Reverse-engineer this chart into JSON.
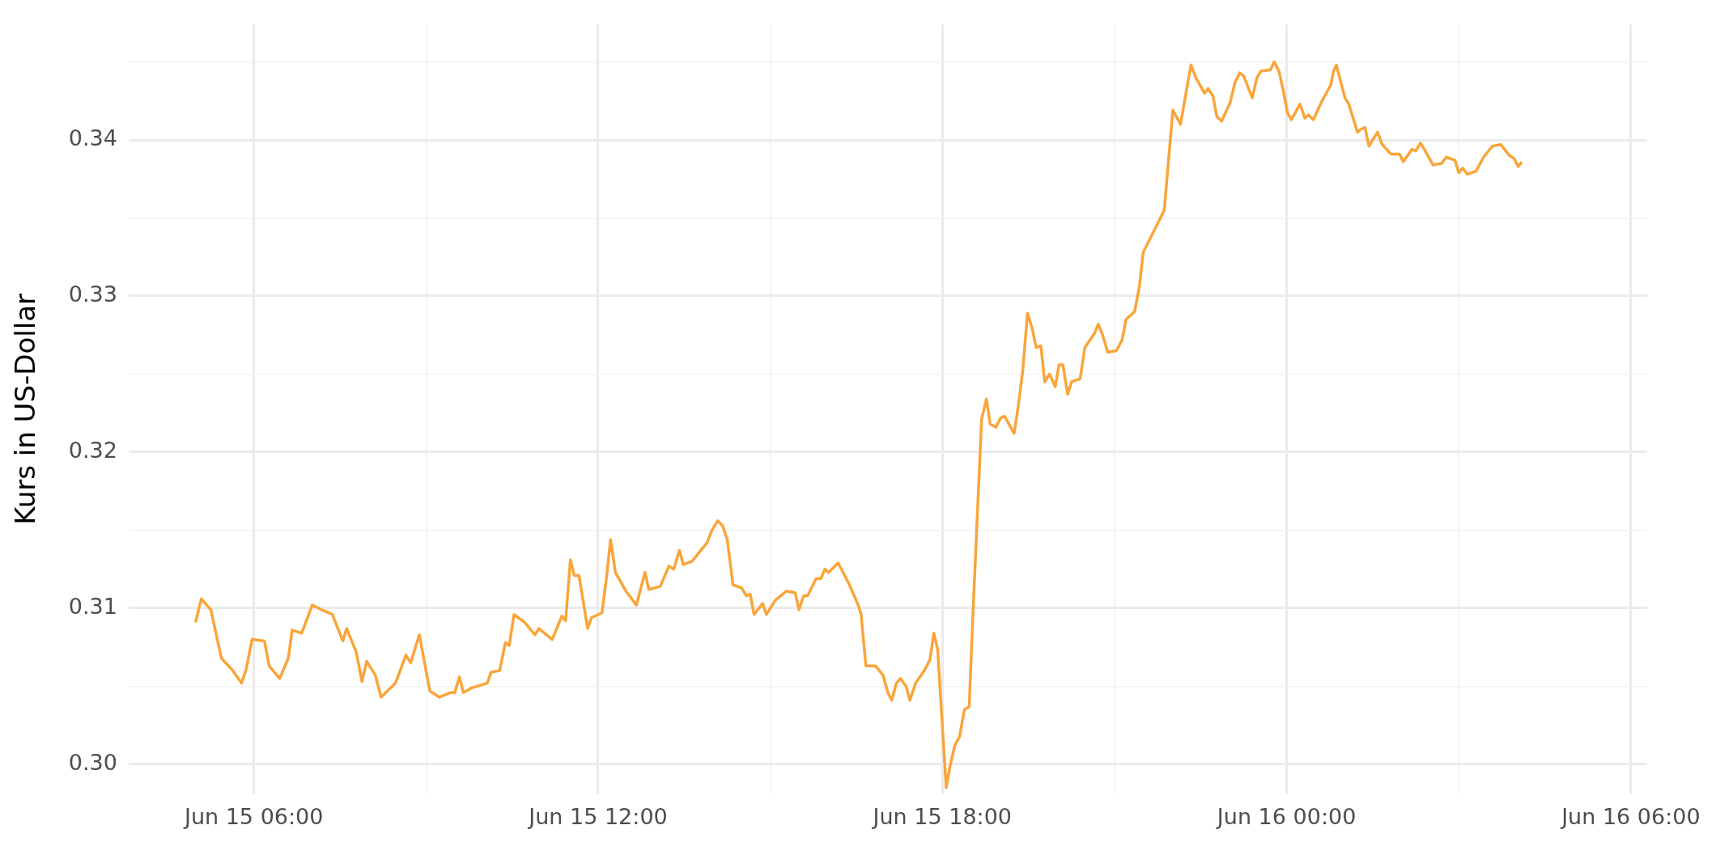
{
  "chart_data": {
    "type": "line",
    "ylabel": "Kurs in US-Dollar",
    "color": "#f9a53a",
    "grid": true,
    "marker": "none",
    "line_style": "solid",
    "legend": false,
    "xlim": [
      "--06-15T03:49",
      "--06-16T06:17"
    ],
    "xticks": [
      {
        "value": "--06-15T06:00",
        "label": "Jun 15 06:00"
      },
      {
        "value": "--06-15T09:00",
        "label": null
      },
      {
        "value": "--06-15T12:00",
        "label": "Jun 15 12:00"
      },
      {
        "value": "--06-15T15:00",
        "label": null
      },
      {
        "value": "--06-15T18:00",
        "label": "Jun 15 18:00"
      },
      {
        "value": "--06-15T21:00",
        "label": null
      },
      {
        "value": "--06-16T00:00",
        "label": "Jun 16 00:00"
      },
      {
        "value": "--06-16T03:00",
        "label": null
      },
      {
        "value": "--06-16T06:00",
        "label": "Jun 16 06:00"
      }
    ],
    "ylim": [
      0.2981,
      0.3474
    ],
    "yticks": [
      {
        "value": 0.3,
        "label": "0.30"
      },
      {
        "value": 0.305,
        "label": null
      },
      {
        "value": 0.31,
        "label": "0.31"
      },
      {
        "value": 0.315,
        "label": null
      },
      {
        "value": 0.32,
        "label": "0.32"
      },
      {
        "value": 0.325,
        "label": null
      },
      {
        "value": 0.33,
        "label": "0.33"
      },
      {
        "value": 0.335,
        "label": null
      },
      {
        "value": 0.34,
        "label": "0.34"
      },
      {
        "value": 0.345,
        "label": null
      }
    ],
    "x": [
      "--06-15T04:59",
      "--06-15T05:05",
      "--06-15T05:15",
      "--06-15T05:26",
      "--06-15T05:38",
      "--06-15T05:47",
      "--06-15T05:52",
      "--06-15T05:58",
      "--06-15T06:11",
      "--06-15T06:16",
      "--06-15T06:27",
      "--06-15T06:36",
      "--06-15T06:40",
      "--06-15T06:50",
      "--06-15T07:01",
      "--06-15T07:11",
      "--06-15T07:22",
      "--06-15T07:33",
      "--06-15T07:37",
      "--06-15T07:47",
      "--06-15T07:53",
      "--06-15T07:58",
      "--06-15T08:07",
      "--06-15T08:13",
      "--06-15T08:28",
      "--06-15T08:39",
      "--06-15T08:44",
      "--06-15T08:53",
      "--06-15T09:04",
      "--06-15T09:14",
      "--06-15T09:26",
      "--06-15T09:30",
      "--06-15T09:35",
      "--06-15T09:39",
      "--06-15T09:48",
      "--06-15T10:04",
      "--06-15T10:08",
      "--06-15T10:17",
      "--06-15T10:23",
      "--06-15T10:27",
      "--06-15T10:32",
      "--06-15T10:43",
      "--06-15T10:54",
      "--06-15T10:58",
      "--06-15T11:12",
      "--06-15T11:22",
      "--06-15T11:26",
      "--06-15T11:31",
      "--06-15T11:35",
      "--06-15T11:40",
      "--06-15T11:49",
      "--06-15T11:53",
      "--06-15T12:04",
      "--06-15T12:09",
      "--06-15T12:13",
      "--06-15T12:18",
      "--06-15T12:29",
      "--06-15T12:40",
      "--06-15T12:49",
      "--06-15T12:53",
      "--06-15T13:05",
      "--06-15T13:14",
      "--06-15T13:19",
      "--06-15T13:25",
      "--06-15T13:29",
      "--06-15T13:38",
      "--06-15T13:54",
      "--06-15T13:59",
      "--06-15T14:05",
      "--06-15T14:10",
      "--06-15T14:15",
      "--06-15T14:21",
      "--06-15T14:30",
      "--06-15T14:35",
      "--06-15T14:39",
      "--06-15T14:43",
      "--06-15T14:52",
      "--06-15T14:56",
      "--06-15T15:05",
      "--06-15T15:17",
      "--06-15T15:26",
      "--06-15T15:30",
      "--06-15T15:35",
      "--06-15T15:39",
      "--06-15T15:48",
      "--06-15T15:53",
      "--06-15T15:57",
      "--06-15T16:01",
      "--06-15T16:11",
      "--06-15T16:22",
      "--06-15T16:32",
      "--06-15T16:35",
      "--06-15T16:40",
      "--06-15T16:50",
      "--06-15T16:58",
      "--06-15T17:03",
      "--06-15T17:07",
      "--06-15T17:12",
      "--06-15T17:16",
      "--06-15T17:22",
      "--06-15T17:26",
      "--06-15T17:32",
      "--06-15T17:41",
      "--06-15T17:47",
      "--06-15T17:51",
      "--06-15T17:55",
      "--06-15T17:58",
      "--06-15T18:04",
      "--06-15T18:08",
      "--06-15T18:13",
      "--06-15T18:18",
      "--06-15T18:23",
      "--06-15T18:28",
      "--06-15T18:32",
      "--06-15T18:41",
      "--06-15T18:46",
      "--06-15T18:50",
      "--06-15T18:56",
      "--06-15T19:01",
      "--06-15T19:05",
      "--06-15T19:15",
      "--06-15T19:19",
      "--06-15T19:24",
      "--06-15T19:29",
      "--06-15T19:34",
      "--06-15T19:38",
      "--06-15T19:43",
      "--06-15T19:47",
      "--06-15T19:52",
      "--06-15T19:58",
      "--06-15T20:02",
      "--06-15T20:06",
      "--06-15T20:11",
      "--06-15T20:15",
      "--06-15T20:24",
      "--06-15T20:29",
      "--06-15T20:39",
      "--06-15T20:43",
      "--06-15T20:47",
      "--06-15T20:53",
      "--06-15T21:02",
      "--06-15T21:08",
      "--06-15T21:12",
      "--06-15T21:21",
      "--06-15T21:26",
      "--06-15T21:30",
      "--06-15T21:39",
      "--06-15T21:48",
      "--06-15T21:52",
      "--06-15T22:01",
      "--06-15T22:09",
      "--06-15T22:15",
      "--06-15T22:20",
      "--06-15T22:25",
      "--06-15T22:34",
      "--06-15T22:38",
      "--06-15T22:43",
      "--06-15T22:47",
      "--06-15T22:52",
      "--06-15T23:01",
      "--06-15T23:06",
      "--06-15T23:11",
      "--06-15T23:15",
      "--06-15T23:24",
      "--06-15T23:29",
      "--06-15T23:33",
      "--06-15T23:43",
      "--06-15T23:47",
      "--06-15T23:52",
      "--06-15T23:56",
      "--06-16T00:01",
      "--06-16T00:05",
      "--06-16T00:14",
      "--06-16T00:19",
      "--06-16T00:23",
      "--06-16T00:28",
      "--06-16T00:37",
      "--06-16T00:46",
      "--06-16T00:49",
      "--06-16T00:52",
      "--06-16T01:01",
      "--06-16T01:05",
      "--06-16T01:14",
      "--06-16T01:18",
      "--06-16T01:22",
      "--06-16T01:26",
      "--06-16T01:35",
      "--06-16T01:40",
      "--06-16T01:49",
      "--06-16T01:58",
      "--06-16T02:02",
      "--06-16T02:11",
      "--06-16T02:15",
      "--06-16T02:20",
      "--06-16T02:24",
      "--06-16T02:33",
      "--06-16T02:42",
      "--06-16T02:47",
      "--06-16T02:56",
      "--06-16T03:00",
      "--06-16T03:04",
      "--06-16T03:09",
      "--06-16T03:18",
      "--06-16T03:26",
      "--06-16T03:35",
      "--06-16T03:44",
      "--06-16T03:53",
      "--06-16T03:58",
      "--06-16T04:02",
      "--06-16T04:06"
    ],
    "values": [
      0.3091,
      0.3106,
      0.3099,
      0.3068,
      0.306,
      0.3052,
      0.3061,
      0.308,
      0.3079,
      0.3063,
      0.3055,
      0.3068,
      0.3086,
      0.3084,
      0.3102,
      0.3099,
      0.3096,
      0.3079,
      0.3087,
      0.3072,
      0.3053,
      0.3066,
      0.3057,
      0.3043,
      0.3052,
      0.307,
      0.3065,
      0.3083,
      0.3047,
      0.3043,
      0.3046,
      0.3046,
      0.3056,
      0.3046,
      0.3049,
      0.3052,
      0.3059,
      0.306,
      0.3078,
      0.3076,
      0.3096,
      0.3091,
      0.3083,
      0.3087,
      0.308,
      0.3095,
      0.3092,
      0.3131,
      0.3121,
      0.3121,
      0.3087,
      0.3094,
      0.3097,
      0.3121,
      0.3144,
      0.3123,
      0.3111,
      0.3102,
      0.3123,
      0.3112,
      0.3114,
      0.3127,
      0.3125,
      0.3137,
      0.3128,
      0.313,
      0.3142,
      0.315,
      0.3156,
      0.3153,
      0.3144,
      0.3115,
      0.3113,
      0.3108,
      0.3109,
      0.3096,
      0.3103,
      0.3096,
      0.3105,
      0.3111,
      0.311,
      0.3099,
      0.3108,
      0.3108,
      0.3119,
      0.3119,
      0.3125,
      0.3123,
      0.3129,
      0.3116,
      0.3102,
      0.3096,
      0.3063,
      0.3063,
      0.3057,
      0.3046,
      0.3041,
      0.3052,
      0.3055,
      0.305,
      0.3041,
      0.3052,
      0.306,
      0.3067,
      0.3084,
      0.3074,
      0.3044,
      0.2985,
      0.2999,
      0.3012,
      0.3018,
      0.3035,
      0.3037,
      0.3097,
      0.3221,
      0.3234,
      0.3218,
      0.3216,
      0.3222,
      0.3223,
      0.3212,
      0.3228,
      0.3252,
      0.3289,
      0.3279,
      0.3267,
      0.3268,
      0.3245,
      0.325,
      0.3242,
      0.3256,
      0.3256,
      0.3237,
      0.3245,
      0.3247,
      0.3267,
      0.3276,
      0.3282,
      0.3276,
      0.3264,
      0.3265,
      0.3272,
      0.3285,
      0.329,
      0.3306,
      0.3328,
      0.3339,
      0.335,
      0.3355,
      0.3419,
      0.341,
      0.3431,
      0.3448,
      0.344,
      0.343,
      0.3433,
      0.3428,
      0.3415,
      0.3412,
      0.3424,
      0.3437,
      0.3443,
      0.3441,
      0.3427,
      0.344,
      0.3444,
      0.3445,
      0.345,
      0.3444,
      0.3433,
      0.3417,
      0.3413,
      0.3423,
      0.3414,
      0.3416,
      0.3413,
      0.3425,
      0.3435,
      0.3444,
      0.3448,
      0.3427,
      0.3423,
      0.3405,
      0.3407,
      0.3408,
      0.3396,
      0.3405,
      0.3397,
      0.3391,
      0.3391,
      0.3386,
      0.3394,
      0.3393,
      0.3398,
      0.3394,
      0.3384,
      0.3385,
      0.3389,
      0.3387,
      0.3379,
      0.3382,
      0.3378,
      0.338,
      0.3389,
      0.3396,
      0.3397,
      0.339,
      0.3388,
      0.3383,
      0.3386
    ]
  }
}
